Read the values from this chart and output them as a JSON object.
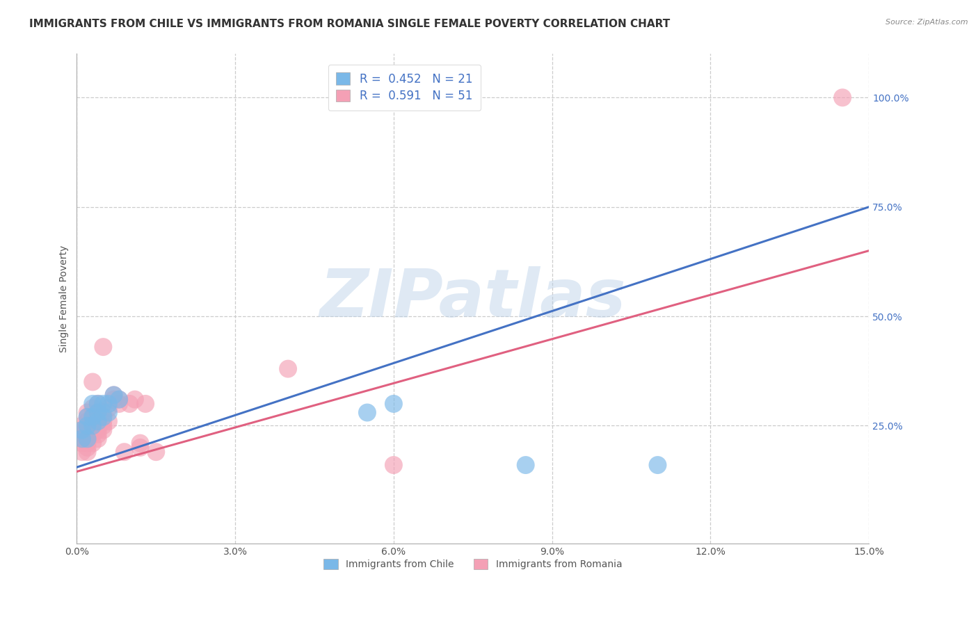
{
  "title": "IMMIGRANTS FROM CHILE VS IMMIGRANTS FROM ROMANIA SINGLE FEMALE POVERTY CORRELATION CHART",
  "source": "Source: ZipAtlas.com",
  "ylabel": "Single Female Poverty",
  "xlim": [
    0.0,
    0.15
  ],
  "ylim": [
    -0.02,
    1.1
  ],
  "xticks": [
    0.0,
    0.03,
    0.06,
    0.09,
    0.12,
    0.15
  ],
  "xtick_labels": [
    "0.0%",
    "3.0%",
    "6.0%",
    "9.0%",
    "12.0%",
    "15.0%"
  ],
  "ytick_positions": [
    0.25,
    0.5,
    0.75,
    1.0
  ],
  "ytick_labels": [
    "25.0%",
    "50.0%",
    "75.0%",
    "100.0%"
  ],
  "chile_color": "#7ab8e8",
  "romania_color": "#f4a0b5",
  "chile_line_color": "#4472c4",
  "romania_line_color": "#e06080",
  "chile_R": 0.452,
  "chile_N": 21,
  "romania_R": 0.591,
  "romania_N": 51,
  "watermark": "ZIPatlas",
  "background_color": "#ffffff",
  "grid_color": "#cccccc",
  "legend_label_chile": "Immigrants from Chile",
  "legend_label_romania": "Immigrants from Romania",
  "chile_data": [
    [
      0.001,
      0.22
    ],
    [
      0.001,
      0.24
    ],
    [
      0.002,
      0.22
    ],
    [
      0.002,
      0.25
    ],
    [
      0.002,
      0.27
    ],
    [
      0.003,
      0.25
    ],
    [
      0.003,
      0.27
    ],
    [
      0.003,
      0.3
    ],
    [
      0.004,
      0.26
    ],
    [
      0.004,
      0.28
    ],
    [
      0.004,
      0.3
    ],
    [
      0.005,
      0.27
    ],
    [
      0.005,
      0.3
    ],
    [
      0.006,
      0.28
    ],
    [
      0.006,
      0.3
    ],
    [
      0.007,
      0.32
    ],
    [
      0.008,
      0.31
    ],
    [
      0.055,
      0.28
    ],
    [
      0.06,
      0.3
    ],
    [
      0.085,
      0.16
    ],
    [
      0.11,
      0.16
    ]
  ],
  "romania_data": [
    [
      0.001,
      0.19
    ],
    [
      0.001,
      0.21
    ],
    [
      0.001,
      0.22
    ],
    [
      0.001,
      0.23
    ],
    [
      0.001,
      0.24
    ],
    [
      0.001,
      0.25
    ],
    [
      0.002,
      0.19
    ],
    [
      0.002,
      0.2
    ],
    [
      0.002,
      0.21
    ],
    [
      0.002,
      0.22
    ],
    [
      0.002,
      0.23
    ],
    [
      0.002,
      0.24
    ],
    [
      0.002,
      0.26
    ],
    [
      0.002,
      0.27
    ],
    [
      0.002,
      0.28
    ],
    [
      0.003,
      0.21
    ],
    [
      0.003,
      0.23
    ],
    [
      0.003,
      0.24
    ],
    [
      0.003,
      0.25
    ],
    [
      0.003,
      0.26
    ],
    [
      0.003,
      0.27
    ],
    [
      0.003,
      0.29
    ],
    [
      0.003,
      0.35
    ],
    [
      0.004,
      0.22
    ],
    [
      0.004,
      0.23
    ],
    [
      0.004,
      0.24
    ],
    [
      0.004,
      0.25
    ],
    [
      0.004,
      0.26
    ],
    [
      0.004,
      0.28
    ],
    [
      0.004,
      0.3
    ],
    [
      0.005,
      0.24
    ],
    [
      0.005,
      0.25
    ],
    [
      0.005,
      0.26
    ],
    [
      0.005,
      0.28
    ],
    [
      0.005,
      0.43
    ],
    [
      0.006,
      0.26
    ],
    [
      0.006,
      0.29
    ],
    [
      0.007,
      0.31
    ],
    [
      0.007,
      0.32
    ],
    [
      0.008,
      0.3
    ],
    [
      0.008,
      0.31
    ],
    [
      0.009,
      0.19
    ],
    [
      0.01,
      0.3
    ],
    [
      0.011,
      0.31
    ],
    [
      0.012,
      0.2
    ],
    [
      0.012,
      0.21
    ],
    [
      0.013,
      0.3
    ],
    [
      0.015,
      0.19
    ],
    [
      0.04,
      0.38
    ],
    [
      0.06,
      0.16
    ],
    [
      0.145,
      1.0
    ]
  ],
  "title_fontsize": 11,
  "axis_label_fontsize": 10,
  "tick_fontsize": 10,
  "legend_fontsize": 12
}
